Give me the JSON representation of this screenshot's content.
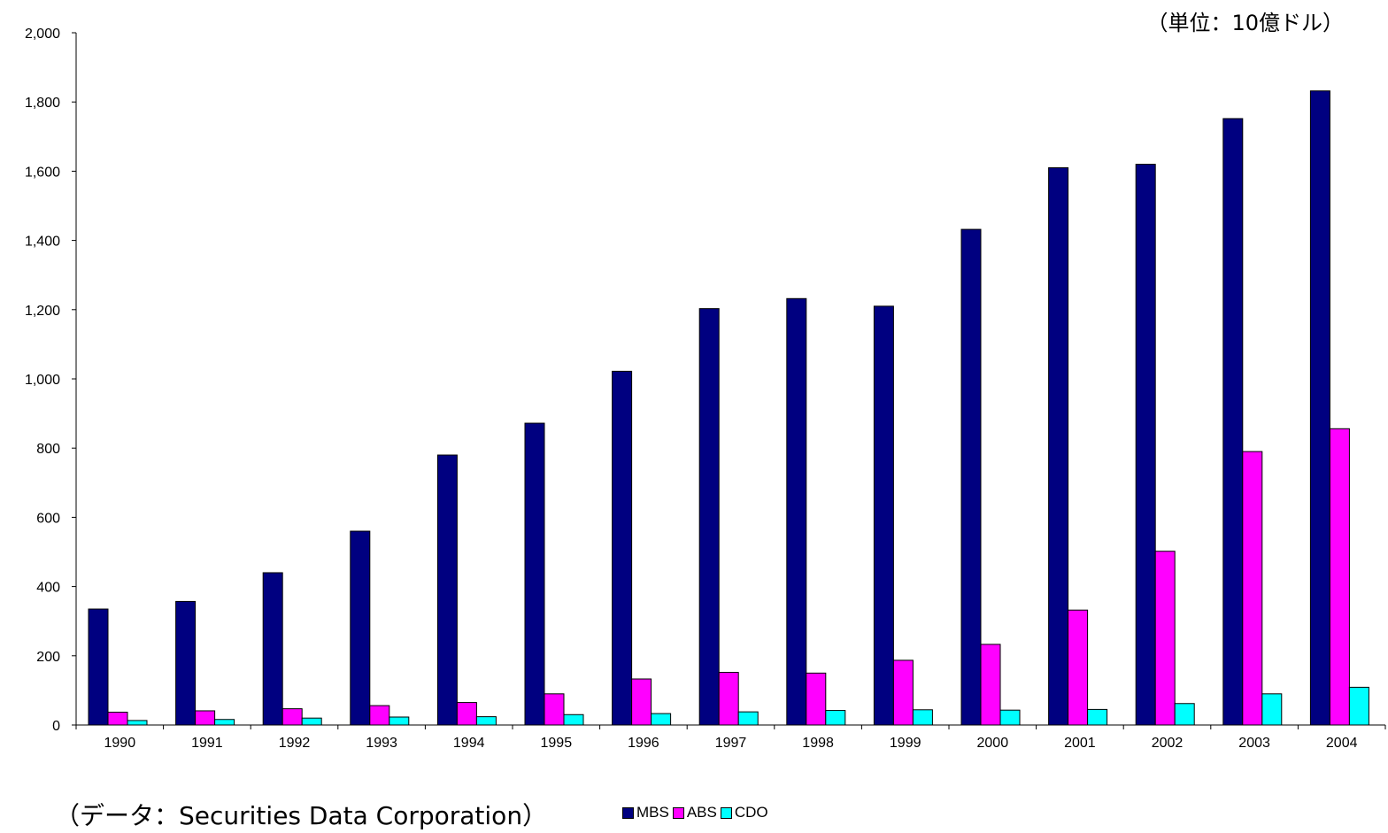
{
  "unit_note": "（単位：10億ドル）",
  "source_note": "（データ：Securities Data Corporation）",
  "chart_data": {
    "type": "bar",
    "categories": [
      "1990",
      "1991",
      "1992",
      "1993",
      "1994",
      "1995",
      "1996",
      "1997",
      "1998",
      "1999",
      "2000",
      "2001",
      "2002",
      "2003",
      "2004"
    ],
    "series": [
      {
        "name": "MBS",
        "color": "#000080",
        "values": [
          335,
          357,
          440,
          560,
          780,
          872,
          1022,
          1203,
          1232,
          1210,
          1432,
          1610,
          1620,
          1752,
          1832
        ]
      },
      {
        "name": "ABS",
        "color": "#ff00ff",
        "values": [
          37,
          41,
          47,
          56,
          65,
          90,
          133,
          152,
          150,
          187,
          233,
          332,
          502,
          790,
          856
        ]
      },
      {
        "name": "CDO",
        "color": "#00ffff",
        "values": [
          13,
          16,
          20,
          23,
          24,
          30,
          33,
          38,
          42,
          44,
          43,
          45,
          62,
          90,
          109
        ]
      }
    ],
    "yticks": [
      "0",
      "200",
      "400",
      "600",
      "800",
      "1,000",
      "1,200",
      "1,400",
      "1,600",
      "1,800",
      "2,000"
    ],
    "ylim": [
      0,
      2000
    ],
    "grid": false,
    "legend_position": "bottom"
  }
}
